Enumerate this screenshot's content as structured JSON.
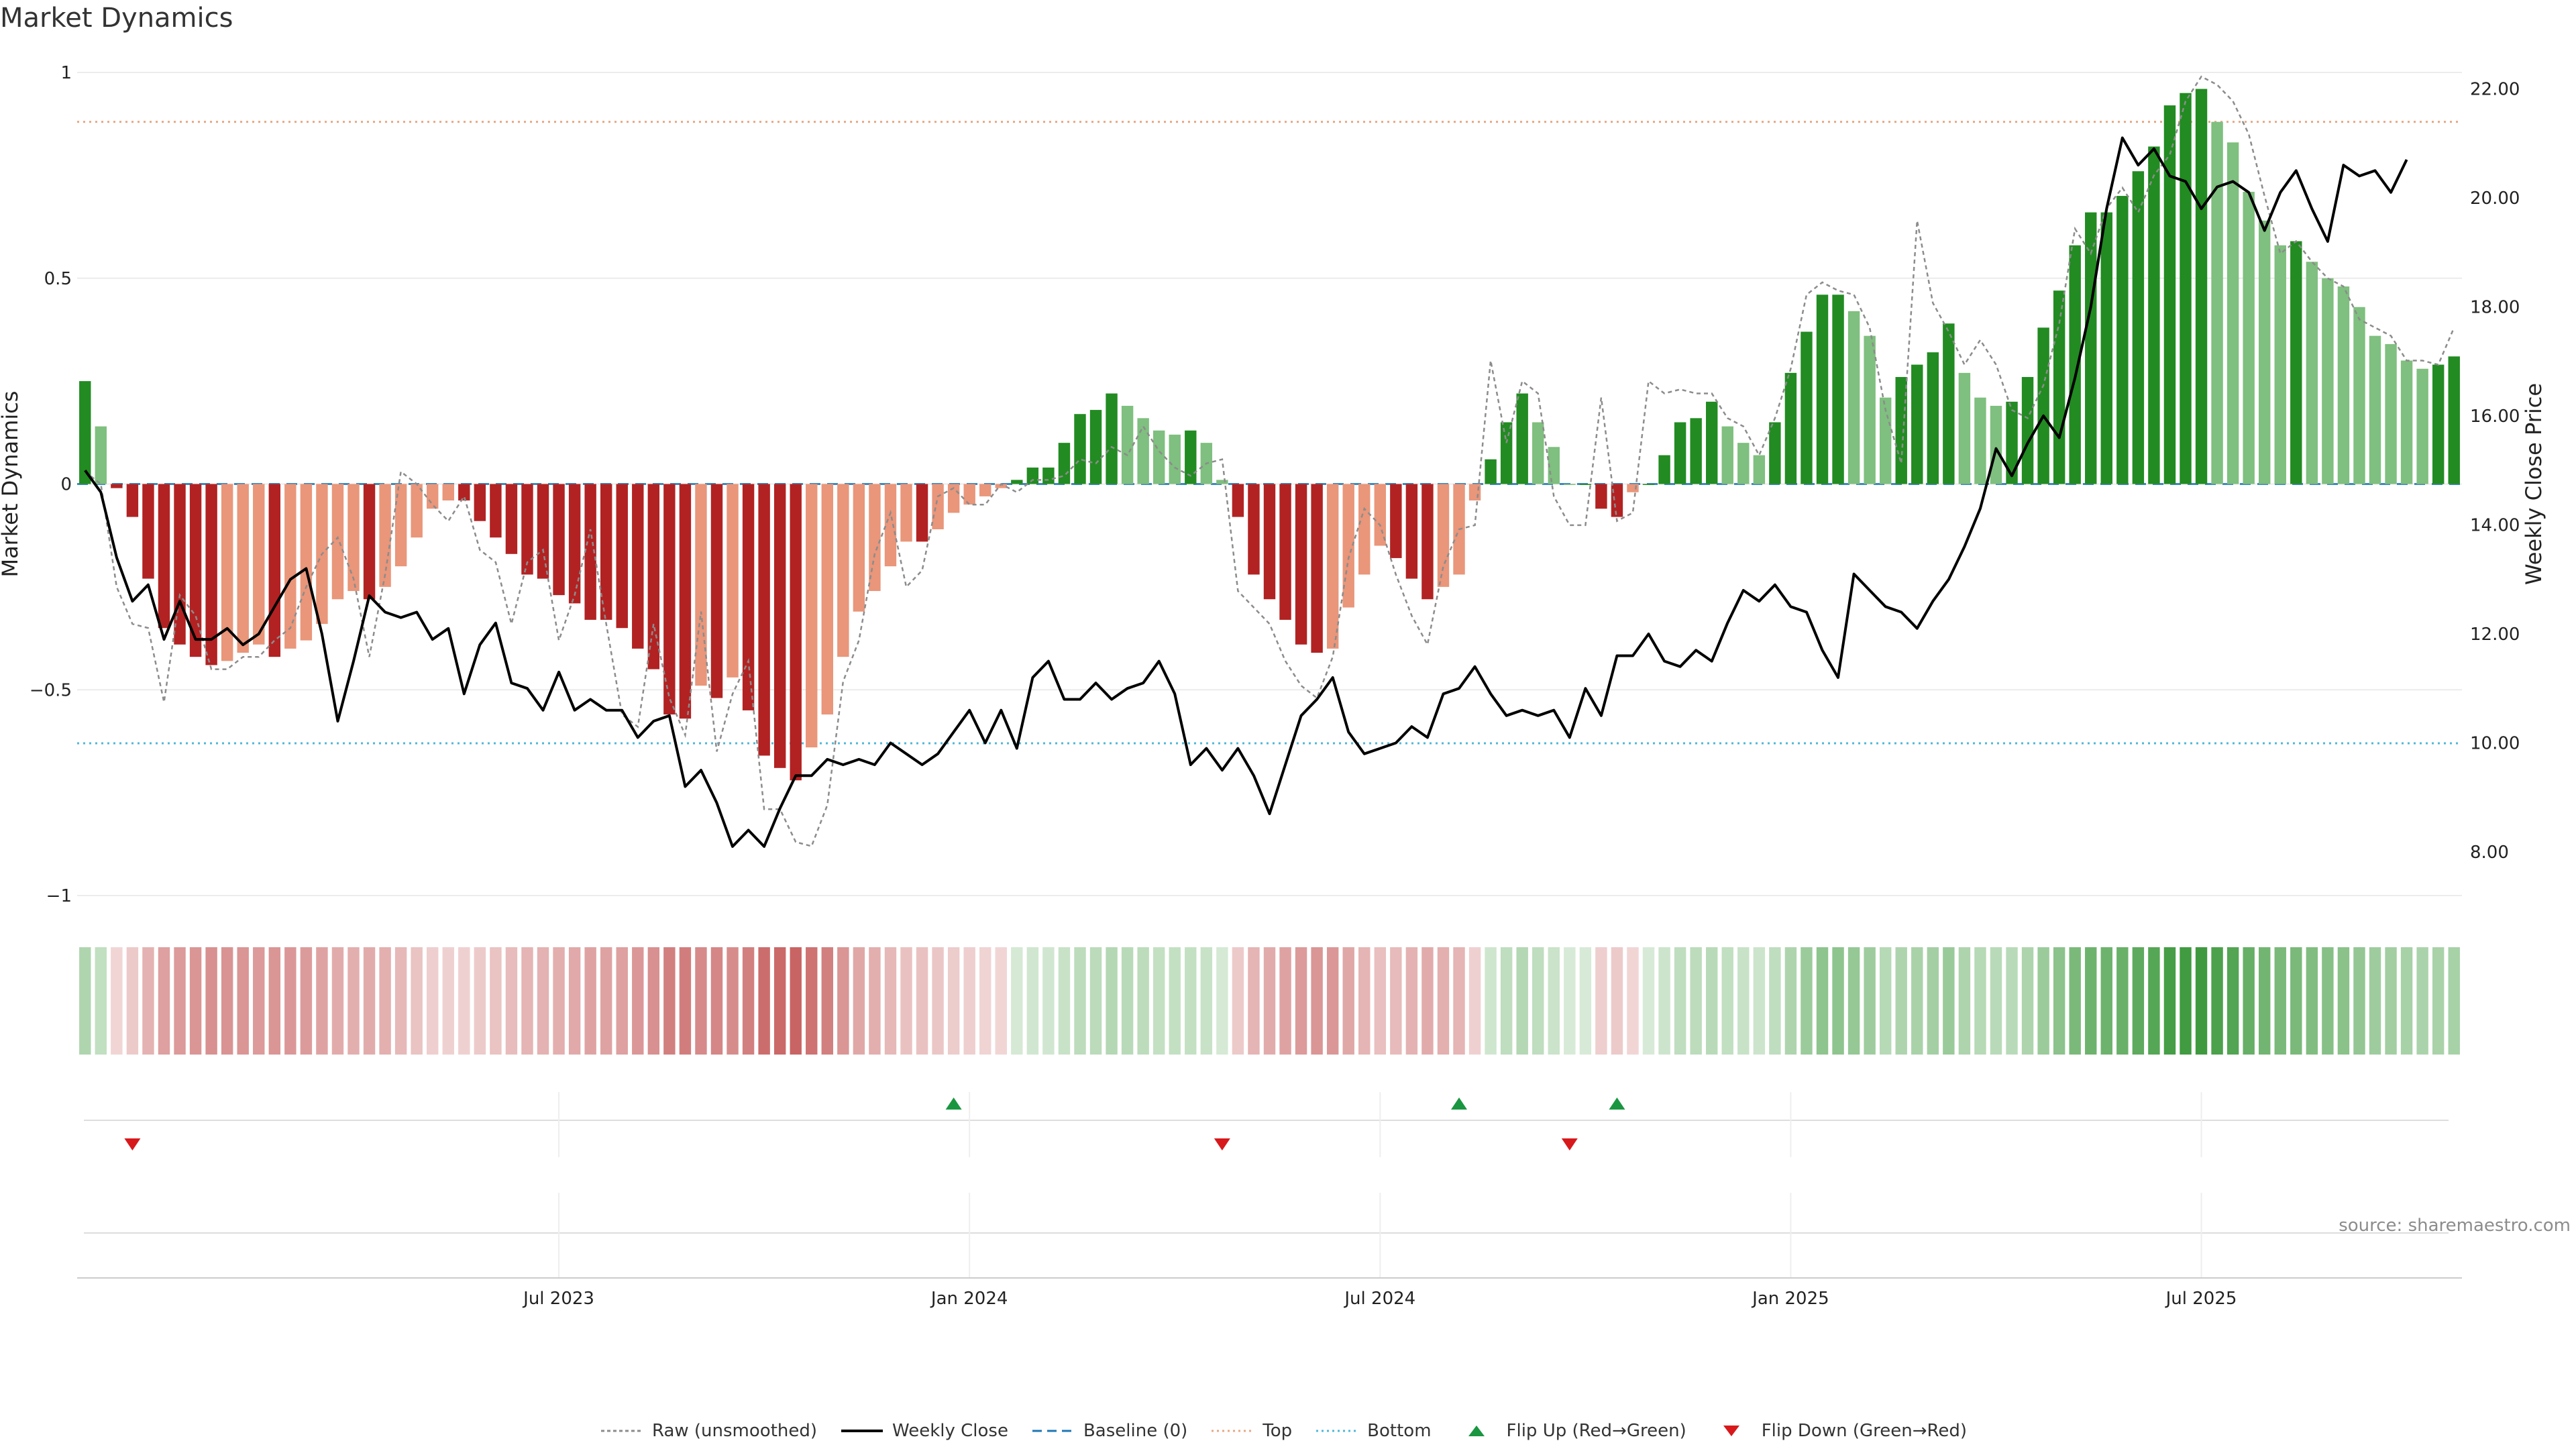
{
  "chart_data": {
    "type": "bar",
    "title": "Market Dynamics",
    "source": "source: sharemaestro.com",
    "ylabel_left": "Market Dynamics",
    "ylabel_right": "Weekly Close Price",
    "ylim_left": [
      -1.0,
      1.0
    ],
    "ylim_right": [
      7.2,
      22.3
    ],
    "left_ticks": [
      {
        "v": 1,
        "label": "1"
      },
      {
        "v": 0.5,
        "label": "0.5"
      },
      {
        "v": 0,
        "label": "0"
      },
      {
        "v": -0.5,
        "label": "−0.5"
      },
      {
        "v": -1,
        "label": "−1"
      }
    ],
    "right_ticks": [
      {
        "v": 22,
        "label": "22.00"
      },
      {
        "v": 20,
        "label": "20.00"
      },
      {
        "v": 18,
        "label": "18.00"
      },
      {
        "v": 16,
        "label": "16.00"
      },
      {
        "v": 14,
        "label": "14.00"
      },
      {
        "v": 12,
        "label": "12.00"
      },
      {
        "v": 10,
        "label": "10.00"
      },
      {
        "v": 8,
        "label": "8.00"
      }
    ],
    "x_ticks": [
      {
        "index": 30,
        "label": "Jul 2023"
      },
      {
        "index": 56,
        "label": "Jan 2024"
      },
      {
        "index": 82,
        "label": "Jul 2024"
      },
      {
        "index": 108,
        "label": "Jan 2025"
      },
      {
        "index": 134,
        "label": "Jul 2025"
      }
    ],
    "baseline": 0,
    "top_threshold": 0.88,
    "bottom_threshold": -0.63,
    "market_dynamics": [
      0.25,
      0.14,
      -0.01,
      -0.08,
      -0.23,
      -0.35,
      -0.39,
      -0.42,
      -0.44,
      -0.43,
      -0.41,
      -0.39,
      -0.42,
      -0.4,
      -0.38,
      -0.34,
      -0.28,
      -0.26,
      -0.28,
      -0.25,
      -0.2,
      -0.13,
      -0.06,
      -0.04,
      -0.04,
      -0.09,
      -0.13,
      -0.17,
      -0.22,
      -0.23,
      -0.27,
      -0.29,
      -0.33,
      -0.33,
      -0.35,
      -0.4,
      -0.45,
      -0.56,
      -0.57,
      -0.49,
      -0.52,
      -0.47,
      -0.55,
      -0.66,
      -0.69,
      -0.72,
      -0.64,
      -0.56,
      -0.42,
      -0.31,
      -0.26,
      -0.2,
      -0.14,
      -0.14,
      -0.11,
      -0.07,
      -0.05,
      -0.03,
      -0.01,
      0.01,
      0.04,
      0.04,
      0.1,
      0.17,
      0.18,
      0.22,
      0.19,
      0.16,
      0.13,
      0.12,
      0.13,
      0.1,
      0.01,
      -0.08,
      -0.22,
      -0.28,
      -0.33,
      -0.39,
      -0.41,
      -0.4,
      -0.3,
      -0.22,
      -0.15,
      -0.18,
      -0.23,
      -0.28,
      -0.25,
      -0.22,
      -0.04,
      0.06,
      0.15,
      0.22,
      0.15,
      0.09,
      0.0,
      0.0,
      -0.06,
      -0.08,
      -0.02,
      0.0,
      0.07,
      0.15,
      0.16,
      0.2,
      0.14,
      0.1,
      0.07,
      0.15,
      0.27,
      0.37,
      0.46,
      0.46,
      0.42,
      0.36,
      0.21,
      0.26,
      0.29,
      0.32,
      0.39,
      0.27,
      0.21,
      0.19,
      0.2,
      0.26,
      0.38,
      0.47,
      0.58,
      0.66,
      0.66,
      0.7,
      0.76,
      0.82,
      0.92,
      0.95,
      0.96,
      0.88,
      0.83,
      0.71,
      0.64,
      0.58,
      0.59,
      0.54,
      0.5,
      0.48,
      0.43,
      0.36,
      0.34,
      0.3,
      0.28,
      0.29,
      0.31
    ],
    "raw_unsmoothed": [
      0.03,
      0.0,
      -0.25,
      -0.34,
      -0.35,
      -0.53,
      -0.27,
      -0.32,
      -0.45,
      -0.45,
      -0.42,
      -0.42,
      -0.38,
      -0.35,
      -0.25,
      -0.17,
      -0.13,
      -0.23,
      -0.42,
      -0.22,
      0.03,
      0.0,
      -0.05,
      -0.09,
      -0.03,
      -0.16,
      -0.19,
      -0.34,
      -0.19,
      -0.16,
      -0.38,
      -0.27,
      -0.11,
      -0.34,
      -0.56,
      -0.59,
      -0.34,
      -0.52,
      -0.61,
      -0.31,
      -0.65,
      -0.51,
      -0.43,
      -0.79,
      -0.79,
      -0.87,
      -0.88,
      -0.78,
      -0.48,
      -0.38,
      -0.17,
      -0.07,
      -0.25,
      -0.21,
      -0.03,
      -0.01,
      -0.05,
      -0.05,
      0.0,
      -0.02,
      0.01,
      0.01,
      0.02,
      0.06,
      0.05,
      0.09,
      0.07,
      0.14,
      0.08,
      0.04,
      0.02,
      0.05,
      0.06,
      -0.26,
      -0.3,
      -0.34,
      -0.43,
      -0.49,
      -0.52,
      -0.42,
      -0.18,
      -0.06,
      -0.1,
      -0.22,
      -0.32,
      -0.39,
      -0.2,
      -0.11,
      -0.1,
      0.3,
      0.1,
      0.25,
      0.22,
      -0.03,
      -0.1,
      -0.1,
      0.21,
      -0.09,
      -0.07,
      0.25,
      0.22,
      0.23,
      0.22,
      0.22,
      0.16,
      0.14,
      0.07,
      0.16,
      0.28,
      0.46,
      0.49,
      0.47,
      0.46,
      0.38,
      0.18,
      0.05,
      0.64,
      0.44,
      0.37,
      0.29,
      0.35,
      0.29,
      0.18,
      0.16,
      0.24,
      0.39,
      0.62,
      0.56,
      0.67,
      0.72,
      0.66,
      0.75,
      0.8,
      0.93,
      0.99,
      0.97,
      0.93,
      0.85,
      0.7,
      0.56,
      0.59,
      0.54,
      0.5,
      0.48,
      0.4,
      0.38,
      0.36,
      0.3,
      0.3,
      0.29,
      0.38
    ],
    "weekly_close": [
      15.0,
      14.6,
      13.4,
      12.6,
      12.9,
      11.9,
      12.6,
      11.9,
      11.9,
      12.1,
      11.8,
      12.0,
      12.5,
      13.0,
      13.2,
      12.0,
      10.4,
      11.5,
      12.7,
      12.4,
      12.3,
      12.4,
      11.9,
      12.1,
      10.9,
      11.8,
      12.2,
      11.1,
      11.0,
      10.6,
      11.3,
      10.6,
      10.8,
      10.6,
      10.6,
      10.1,
      10.4,
      10.5,
      9.2,
      9.5,
      8.9,
      8.1,
      8.4,
      8.1,
      8.8,
      9.4,
      9.4,
      9.7,
      9.6,
      9.7,
      9.6,
      10.0,
      9.8,
      9.6,
      9.8,
      10.2,
      10.6,
      10.0,
      10.6,
      9.9,
      11.2,
      11.5,
      10.8,
      10.8,
      11.1,
      10.8,
      11.0,
      11.1,
      11.5,
      10.9,
      9.6,
      9.9,
      9.5,
      9.9,
      9.4,
      8.7,
      9.6,
      10.5,
      10.8,
      11.2,
      10.2,
      9.8,
      9.9,
      10.0,
      10.3,
      10.1,
      10.9,
      11.0,
      11.4,
      10.9,
      10.5,
      10.6,
      10.5,
      10.6,
      10.1,
      11.0,
      10.5,
      11.6,
      11.6,
      12.0,
      11.5,
      11.4,
      11.7,
      11.5,
      12.2,
      12.8,
      12.6,
      12.9,
      12.5,
      12.4,
      11.7,
      11.2,
      13.1,
      12.8,
      12.5,
      12.4,
      12.1,
      12.6,
      13.0,
      13.6,
      14.3,
      15.4,
      14.9,
      15.5,
      16.0,
      15.6,
      16.7,
      18.0,
      19.8,
      21.1,
      20.6,
      20.9,
      20.4,
      20.3,
      19.8,
      20.2,
      20.3,
      20.1,
      19.4,
      20.1,
      20.5,
      19.8,
      19.2,
      20.6,
      20.4,
      20.5,
      20.1,
      20.7
    ],
    "heat_strip": "colour-graded band of the market dynamics value (red = negative, green = positive)",
    "flip_up": [
      {
        "index": 55,
        "label": "Flip Up (Red→Green)"
      },
      {
        "index": 87,
        "label": "Flip Up (Red→Green)"
      },
      {
        "index": 97,
        "label": "Flip Up (Red→Green)"
      }
    ],
    "flip_down": [
      {
        "index": 3,
        "label": "Flip Down (Green→Red)"
      },
      {
        "index": 72,
        "label": "Flip Down (Green→Red)"
      },
      {
        "index": 94,
        "label": "Flip Down (Green→Red)"
      }
    ],
    "legend": [
      {
        "key": "raw",
        "label": "Raw (unsmoothed)"
      },
      {
        "key": "close",
        "label": "Weekly Close"
      },
      {
        "key": "baseline",
        "label": "Baseline (0)"
      },
      {
        "key": "top",
        "label": "Top"
      },
      {
        "key": "bottom",
        "label": "Bottom"
      },
      {
        "key": "flipup",
        "label": "Flip Up (Red→Green)"
      },
      {
        "key": "flipdown",
        "label": "Flip Down (Green→Red)"
      }
    ],
    "colors": {
      "pos_strong": "#228b22",
      "pos_weak": "#7fbf7f",
      "neg_strong": "#b22222",
      "neg_weak": "#e9967a",
      "close": "#000000",
      "raw": "#8c8c8c",
      "baseline": "#1f77b4",
      "top": "#e8a883",
      "bottom": "#4fb8d8",
      "flip_up": "#1a9641",
      "flip_down": "#d7191c"
    }
  }
}
